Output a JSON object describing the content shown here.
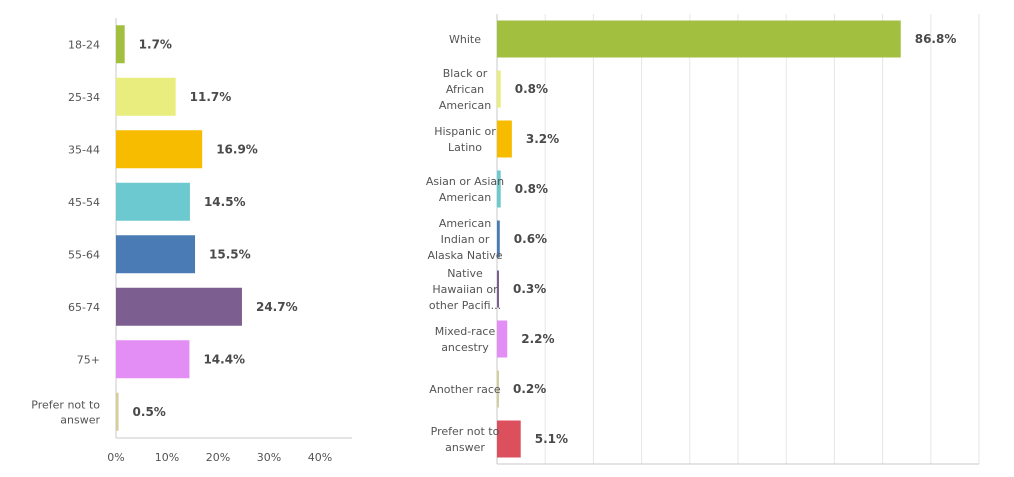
{
  "chart_data": [
    {
      "type": "bar",
      "orientation": "horizontal",
      "title": "",
      "categories": [
        "18-24",
        "25-34",
        "35-44",
        "45-54",
        "55-64",
        "65-74",
        "75+",
        "Prefer not to answer"
      ],
      "values": [
        1.7,
        11.7,
        16.9,
        14.5,
        15.5,
        24.7,
        14.4,
        0.5
      ],
      "value_labels": [
        "1.7%",
        "11.7%",
        "16.9%",
        "14.5%",
        "15.5%",
        "24.7%",
        "14.4%",
        "0.5%"
      ],
      "colors": [
        "#a2bf3f",
        "#e8ed7d",
        "#f7bc00",
        "#6cc9cf",
        "#4b7bb5",
        "#7d5e90",
        "#e38ef5",
        "#d3ce9c"
      ],
      "x_ticks": [
        "0%",
        "10%",
        "20%",
        "30%",
        "40%"
      ],
      "xlim": [
        0,
        45
      ],
      "grid": false
    },
    {
      "type": "bar",
      "orientation": "horizontal",
      "title": "",
      "categories": [
        "White",
        "Black or African American",
        "Hispanic or Latino",
        "Asian or Asian American",
        "American Indian or Alaska Native",
        "Native Hawaiian or other Pacifi...",
        "Mixed-race ancestry",
        "Another race",
        "Prefer not to answer"
      ],
      "category_lines": [
        [
          "White"
        ],
        [
          "Black or",
          "African",
          "American"
        ],
        [
          "Hispanic or",
          "Latino"
        ],
        [
          "Asian or Asian",
          "American"
        ],
        [
          "American",
          "Indian or",
          "Alaska Native"
        ],
        [
          "Native",
          "Hawaiian or",
          "other Pacifi..."
        ],
        [
          "Mixed-race",
          "ancestry"
        ],
        [
          "Another race"
        ],
        [
          "Prefer not to",
          "answer"
        ]
      ],
      "values": [
        86.8,
        0.8,
        3.2,
        0.8,
        0.6,
        0.3,
        2.2,
        0.2,
        5.1
      ],
      "value_labels": [
        "86.8%",
        "0.8%",
        "3.2%",
        "0.8%",
        "0.6%",
        "0.3%",
        "2.2%",
        "0.2%",
        "5.1%"
      ],
      "colors": [
        "#a2bf3f",
        "#e8ed7d",
        "#f7bc00",
        "#6cc9cf",
        "#4b7bb5",
        "#7d5e90",
        "#e38ef5",
        "#d3ce9c",
        "#dc4f5c"
      ],
      "xlim": [
        0,
        100
      ],
      "grid": true
    }
  ]
}
